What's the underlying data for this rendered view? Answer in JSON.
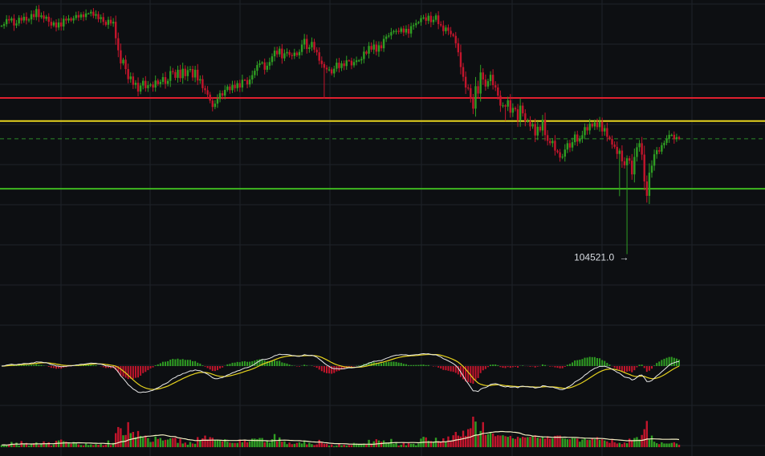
{
  "chart_data": {
    "type": "candlestick",
    "grid": true,
    "colors": {
      "background": "#0d0f12",
      "grid": "#1f2329",
      "up": "#2f9e23",
      "down": "#c3152c",
      "resistance": "#e0202f",
      "mid": "#e6d21e",
      "support": "#3fb81f",
      "current": "#2d8a2a",
      "macd_line": "#e8e8e8",
      "signal_line": "#e6d21e",
      "vol_ma": "#f3efc4"
    },
    "price_range": [
      104200,
      112100
    ],
    "levels": {
      "resistance": 109180,
      "mid": 108490,
      "current": 107960,
      "support": 106470
    },
    "low_marker": {
      "label": "104521.0",
      "arrow": "→",
      "value": 104521.0
    },
    "price_series": [
      111330,
      111380,
      111530,
      111490,
      111550,
      111340,
      111400,
      111570,
      111490,
      111600,
      111490,
      111520,
      111680,
      111590,
      111830,
      111590,
      111640,
      111540,
      111600,
      111450,
      111340,
      111430,
      111280,
      111430,
      111310,
      111540,
      111490,
      111550,
      111490,
      111560,
      111650,
      111580,
      111670,
      111590,
      111700,
      111700,
      111750,
      111630,
      111680,
      111530,
      111590,
      111450,
      111360,
      111510,
      111400,
      111450,
      110960,
      110600,
      110210,
      110320,
      110040,
      109740,
      109820,
      109570,
      109630,
      109370,
      109550,
      109690,
      109470,
      109560,
      109580,
      109490,
      109700,
      109590,
      109660,
      109800,
      109600,
      109690,
      109980,
      109950,
      109780,
      110020,
      109770,
      110050,
      109830,
      110010,
      110040,
      109790,
      110020,
      109700,
      109740,
      109470,
      109410,
      109280,
      109100,
      108910,
      109010,
      109150,
      109320,
      109250,
      109420,
      109520,
      109410,
      109570,
      109470,
      109620,
      109490,
      109720,
      109710,
      109580,
      109730,
      109860,
      109990,
      110160,
      110210,
      110240,
      110020,
      110140,
      110250,
      110420,
      110590,
      110480,
      110650,
      110360,
      110510,
      110550,
      110460,
      110430,
      110530,
      110450,
      110550,
      110770,
      110940,
      110640,
      110690,
      110850,
      110620,
      110540,
      110290,
      110190,
      110080,
      110030,
      110030,
      109910,
      110050,
      110230,
      110070,
      110210,
      110130,
      110300,
      110290,
      110150,
      110250,
      110300,
      110300,
      110340,
      110560,
      110500,
      110730,
      110620,
      110770,
      110560,
      110750,
      110660,
      110940,
      111010,
      111040,
      111140,
      111170,
      111180,
      111150,
      111250,
      111130,
      111240,
      111100,
      111320,
      111350,
      111410,
      111440,
      111560,
      111580,
      111480,
      111630,
      111440,
      111510,
      111640,
      111380,
      111340,
      111170,
      111280,
      111180,
      111080,
      111030,
      110810,
      110540,
      110100,
      109810,
      109490,
      109470,
      109160,
      108860,
      109530,
      109310,
      109940,
      109730,
      109520,
      109680,
      109870,
      109560,
      109490,
      109250,
      108950,
      108960,
      108920,
      109110,
      108740,
      108880,
      108840,
      108510,
      108950,
      108720,
      108480,
      108490,
      108330,
      108400,
      108060,
      108320,
      108210,
      108530,
      108070,
      107900,
      107830,
      107900,
      107610,
      107560,
      107400,
      107430,
      107640,
      107830,
      107700,
      107860,
      108090,
      107880,
      107960,
      108070,
      108310,
      108210,
      108410,
      108330,
      108450,
      108310,
      108470,
      108180,
      108280,
      108020,
      107960,
      107790,
      107720,
      107510,
      107610,
      107290,
      107170,
      107380,
      107310,
      106900,
      107420,
      107710,
      107830,
      107490,
      106690,
      106260,
      106950,
      107160,
      107500,
      107620,
      107580,
      107770,
      107840,
      107960,
      108080,
      108080,
      107950,
      108010,
      107960
    ],
    "volume_series": [
      0.07,
      0.08,
      0.06,
      0.1,
      0.17,
      0.1,
      0.15,
      0.05,
      0.2,
      0.09,
      0.14,
      0.05,
      0.1,
      0.13,
      0.16,
      0.07,
      0.11,
      0.19,
      0.12,
      0.16,
      0.05,
      0.09,
      0.21,
      0.22,
      0.25,
      0.2,
      0.18,
      0.13,
      0.11,
      0.17,
      0.13,
      0.09,
      0.07,
      0.06,
      0.12,
      0.07,
      0.09,
      0.07,
      0.1,
      0.08,
      0.11,
      0.06,
      0.08,
      0.22,
      0.07,
      0.14,
      0.46,
      0.66,
      0.62,
      0.39,
      0.4,
      0.82,
      0.46,
      0.5,
      0.33,
      0.53,
      0.37,
      0.32,
      0.38,
      0.3,
      0.17,
      0.18,
      0.35,
      0.27,
      0.3,
      0.22,
      0.24,
      0.25,
      0.29,
      0.3,
      0.31,
      0.14,
      0.27,
      0.12,
      0.15,
      0.08,
      0.17,
      0.12,
      0.11,
      0.33,
      0.21,
      0.29,
      0.38,
      0.25,
      0.33,
      0.31,
      0.24,
      0.25,
      0.24,
      0.19,
      0.26,
      0.18,
      0.15,
      0.14,
      0.14,
      0.14,
      0.25,
      0.16,
      0.23,
      0.16,
      0.19,
      0.28,
      0.28,
      0.26,
      0.3,
      0.3,
      0.16,
      0.2,
      0.15,
      0.26,
      0.43,
      0.19,
      0.32,
      0.18,
      0.19,
      0.1,
      0.15,
      0.1,
      0.11,
      0.14,
      0.16,
      0.12,
      0.22,
      0.09,
      0.14,
      0.1,
      0.07,
      0.09,
      0.24,
      0.17,
      0.11,
      0.11,
      0.05,
      0.09,
      0.03,
      0.05,
      0.12,
      0.06,
      0.08,
      0.05,
      0.07,
      0.07,
      0.14,
      0.12,
      0.1,
      0.08,
      0.12,
      0.08,
      0.24,
      0.11,
      0.19,
      0.26,
      0.22,
      0.18,
      0.22,
      0.15,
      0.16,
      0.27,
      0.11,
      0.15,
      0.05,
      0.08,
      0.15,
      0.06,
      0.13,
      0.11,
      0.11,
      0.06,
      0.12,
      0.28,
      0.34,
      0.32,
      0.21,
      0.2,
      0.18,
      0.31,
      0.2,
      0.18,
      0.29,
      0.17,
      0.35,
      0.21,
      0.39,
      0.5,
      0.38,
      0.35,
      0.54,
      0.37,
      0.59,
      0.62,
      1.0,
      0.84,
      0.4,
      0.53,
      0.82,
      0.4,
      0.43,
      0.5,
      0.45,
      0.36,
      0.39,
      0.38,
      0.39,
      0.36,
      0.34,
      0.37,
      0.29,
      0.27,
      0.34,
      0.3,
      0.34,
      0.32,
      0.33,
      0.34,
      0.36,
      0.39,
      0.31,
      0.29,
      0.33,
      0.28,
      0.36,
      0.28,
      0.29,
      0.37,
      0.38,
      0.38,
      0.29,
      0.28,
      0.26,
      0.26,
      0.3,
      0.29,
      0.28,
      0.18,
      0.25,
      0.3,
      0.24,
      0.24,
      0.3,
      0.26,
      0.33,
      0.24,
      0.26,
      0.22,
      0.19,
      0.14,
      0.27,
      0.16,
      0.12,
      0.14,
      0.1,
      0.15,
      0.13,
      0.28,
      0.21,
      0.3,
      0.33,
      0.25,
      0.4,
      0.59,
      0.86,
      0.25,
      0.38,
      0.18,
      0.13,
      0.1,
      0.16,
      0.12,
      0.12,
      0.12,
      0.14,
      0.16,
      0.12,
      0.08
    ]
  }
}
